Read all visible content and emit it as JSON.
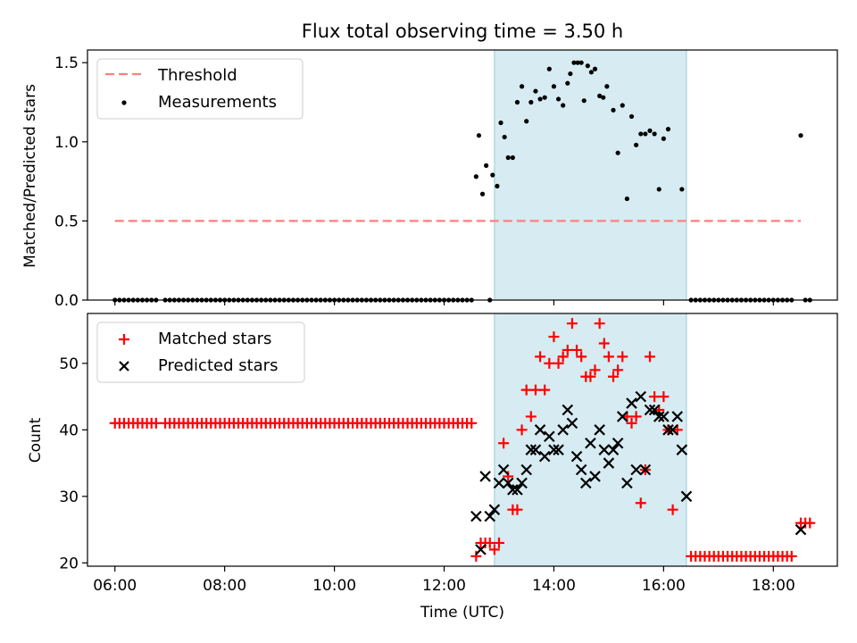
{
  "figure": {
    "title": "Flux total observing time = 3.50 h",
    "highlight_span": [
      "12:55",
      "16:25"
    ],
    "colors": {
      "threshold": "#ff7f7f",
      "measurements": "#000000",
      "matched": "#ff0000",
      "predicted": "#000000",
      "highlight": "#add8e6"
    }
  },
  "chart_data": [
    {
      "type": "scatter",
      "ylabel": "Matched/Predicted stars",
      "xlim": [
        "05:30",
        "19:10"
      ],
      "ylim": [
        0,
        1.58
      ],
      "yticks": [
        0.0,
        0.5,
        1.0,
        1.5
      ],
      "ytick_labels": [
        "0.0",
        "0.5",
        "1.0",
        "1.5"
      ],
      "legend": {
        "placement": "top-left",
        "entries": [
          "Threshold",
          "Measurements"
        ]
      },
      "threshold": {
        "name": "Threshold",
        "y": 0.5,
        "x_range": [
          "06:00",
          "18:30"
        ]
      },
      "measurements": {
        "name": "Measurements",
        "zero_runs": [
          {
            "start": "06:00",
            "end": "06:45",
            "step_min": 5
          },
          {
            "start": "06:55",
            "end": "12:30",
            "step_min": 5
          },
          {
            "start": "16:30",
            "end": "18:20",
            "step_min": 5
          }
        ],
        "points": [
          [
            "12:50",
            0.0
          ],
          [
            "18:35",
            0.0
          ],
          [
            "18:40",
            0.0
          ],
          [
            "12:35",
            0.78
          ],
          [
            "12:38",
            1.04
          ],
          [
            "12:42",
            0.67
          ],
          [
            "12:46",
            0.85
          ],
          [
            "12:53",
            0.79
          ],
          [
            "12:58",
            0.72
          ],
          [
            "13:02",
            1.12
          ],
          [
            "13:06",
            1.03
          ],
          [
            "13:10",
            0.9
          ],
          [
            "13:15",
            0.9
          ],
          [
            "13:20",
            1.25
          ],
          [
            "13:25",
            1.35
          ],
          [
            "13:30",
            1.13
          ],
          [
            "13:35",
            1.25
          ],
          [
            "13:40",
            1.32
          ],
          [
            "13:45",
            1.27
          ],
          [
            "13:50",
            1.28
          ],
          [
            "13:55",
            1.46
          ],
          [
            "14:00",
            1.35
          ],
          [
            "14:05",
            1.27
          ],
          [
            "14:10",
            1.23
          ],
          [
            "14:15",
            1.37
          ],
          [
            "14:18",
            1.43
          ],
          [
            "14:22",
            1.5
          ],
          [
            "14:26",
            1.5
          ],
          [
            "14:30",
            1.5
          ],
          [
            "14:33",
            1.26
          ],
          [
            "14:37",
            1.48
          ],
          [
            "14:41",
            1.44
          ],
          [
            "14:45",
            1.46
          ],
          [
            "14:50",
            1.29
          ],
          [
            "14:54",
            1.28
          ],
          [
            "14:58",
            1.35
          ],
          [
            "15:05",
            1.2
          ],
          [
            "15:10",
            0.93
          ],
          [
            "15:15",
            1.23
          ],
          [
            "15:20",
            0.64
          ],
          [
            "15:25",
            1.16
          ],
          [
            "15:30",
            0.98
          ],
          [
            "15:35",
            1.05
          ],
          [
            "15:40",
            1.05
          ],
          [
            "15:45",
            1.07
          ],
          [
            "15:50",
            1.05
          ],
          [
            "15:55",
            0.7
          ],
          [
            "16:00",
            1.02
          ],
          [
            "16:05",
            1.08
          ],
          [
            "16:20",
            0.7
          ],
          [
            "18:30",
            1.04
          ]
        ]
      }
    },
    {
      "type": "scatter",
      "xlabel": "Time (UTC)",
      "ylabel": "Count",
      "xlim": [
        "05:30",
        "19:10"
      ],
      "ylim": [
        19.5,
        57.5
      ],
      "yticks": [
        20,
        30,
        40,
        50
      ],
      "ytick_labels": [
        "20",
        "30",
        "40",
        "50"
      ],
      "xticks": [
        "06:00",
        "08:00",
        "10:00",
        "12:00",
        "14:00",
        "16:00",
        "18:00"
      ],
      "legend": {
        "placement": "top-left",
        "entries": [
          "Matched stars",
          "Predicted stars"
        ]
      },
      "matched": {
        "name": "Matched stars",
        "runs": [
          {
            "start": "06:00",
            "end": "06:45",
            "step_min": 5,
            "value": 41
          },
          {
            "start": "06:55",
            "end": "12:30",
            "step_min": 5,
            "value": 41
          },
          {
            "start": "16:30",
            "end": "18:20",
            "step_min": 5,
            "value": 21
          }
        ],
        "points": [
          [
            "12:35",
            21
          ],
          [
            "12:40",
            23
          ],
          [
            "12:45",
            23
          ],
          [
            "12:50",
            23
          ],
          [
            "12:55",
            22
          ],
          [
            "13:00",
            23
          ],
          [
            "13:05",
            38
          ],
          [
            "13:10",
            33
          ],
          [
            "13:15",
            28
          ],
          [
            "13:20",
            28
          ],
          [
            "13:25",
            40
          ],
          [
            "13:30",
            46
          ],
          [
            "13:35",
            42
          ],
          [
            "13:40",
            46
          ],
          [
            "13:45",
            51
          ],
          [
            "13:50",
            46
          ],
          [
            "13:55",
            50
          ],
          [
            "14:00",
            54
          ],
          [
            "14:05",
            50
          ],
          [
            "14:10",
            51
          ],
          [
            "14:15",
            52
          ],
          [
            "14:20",
            56
          ],
          [
            "14:25",
            52
          ],
          [
            "14:30",
            51
          ],
          [
            "14:35",
            48
          ],
          [
            "14:40",
            48
          ],
          [
            "14:45",
            49
          ],
          [
            "14:50",
            56
          ],
          [
            "14:55",
            53
          ],
          [
            "15:00",
            51
          ],
          [
            "15:05",
            48
          ],
          [
            "15:10",
            49
          ],
          [
            "15:15",
            51
          ],
          [
            "15:20",
            42
          ],
          [
            "15:25",
            41
          ],
          [
            "15:30",
            42
          ],
          [
            "15:35",
            29
          ],
          [
            "15:40",
            34
          ],
          [
            "15:45",
            51
          ],
          [
            "15:50",
            45
          ],
          [
            "15:55",
            43
          ],
          [
            "16:00",
            45
          ],
          [
            "16:05",
            40
          ],
          [
            "16:10",
            28
          ],
          [
            "16:15",
            40
          ],
          [
            "18:30",
            26
          ],
          [
            "18:35",
            26
          ],
          [
            "18:40",
            26
          ]
        ]
      },
      "predicted": {
        "name": "Predicted stars",
        "points": [
          [
            "12:35",
            27
          ],
          [
            "12:40",
            22
          ],
          [
            "12:45",
            33
          ],
          [
            "12:50",
            27
          ],
          [
            "12:55",
            28
          ],
          [
            "13:00",
            32
          ],
          [
            "13:05",
            34
          ],
          [
            "13:10",
            32
          ],
          [
            "13:15",
            31
          ],
          [
            "13:20",
            31
          ],
          [
            "13:25",
            32
          ],
          [
            "13:30",
            34
          ],
          [
            "13:35",
            37
          ],
          [
            "13:40",
            37
          ],
          [
            "13:45",
            40
          ],
          [
            "13:50",
            36
          ],
          [
            "13:55",
            39
          ],
          [
            "14:00",
            37
          ],
          [
            "14:05",
            37
          ],
          [
            "14:10",
            40
          ],
          [
            "14:15",
            43
          ],
          [
            "14:20",
            41
          ],
          [
            "14:25",
            36
          ],
          [
            "14:30",
            34
          ],
          [
            "14:35",
            32
          ],
          [
            "14:40",
            38
          ],
          [
            "14:45",
            33
          ],
          [
            "14:50",
            40
          ],
          [
            "14:55",
            37
          ],
          [
            "15:00",
            35
          ],
          [
            "15:05",
            37
          ],
          [
            "15:10",
            38
          ],
          [
            "15:15",
            42
          ],
          [
            "15:20",
            32
          ],
          [
            "15:25",
            44
          ],
          [
            "15:30",
            34
          ],
          [
            "15:35",
            45
          ],
          [
            "15:40",
            34
          ],
          [
            "15:45",
            43
          ],
          [
            "15:50",
            43
          ],
          [
            "15:55",
            42
          ],
          [
            "16:00",
            42
          ],
          [
            "16:05",
            40
          ],
          [
            "16:10",
            40
          ],
          [
            "16:15",
            42
          ],
          [
            "16:20",
            37
          ],
          [
            "16:25",
            30
          ],
          [
            "18:30",
            25
          ]
        ]
      }
    }
  ]
}
